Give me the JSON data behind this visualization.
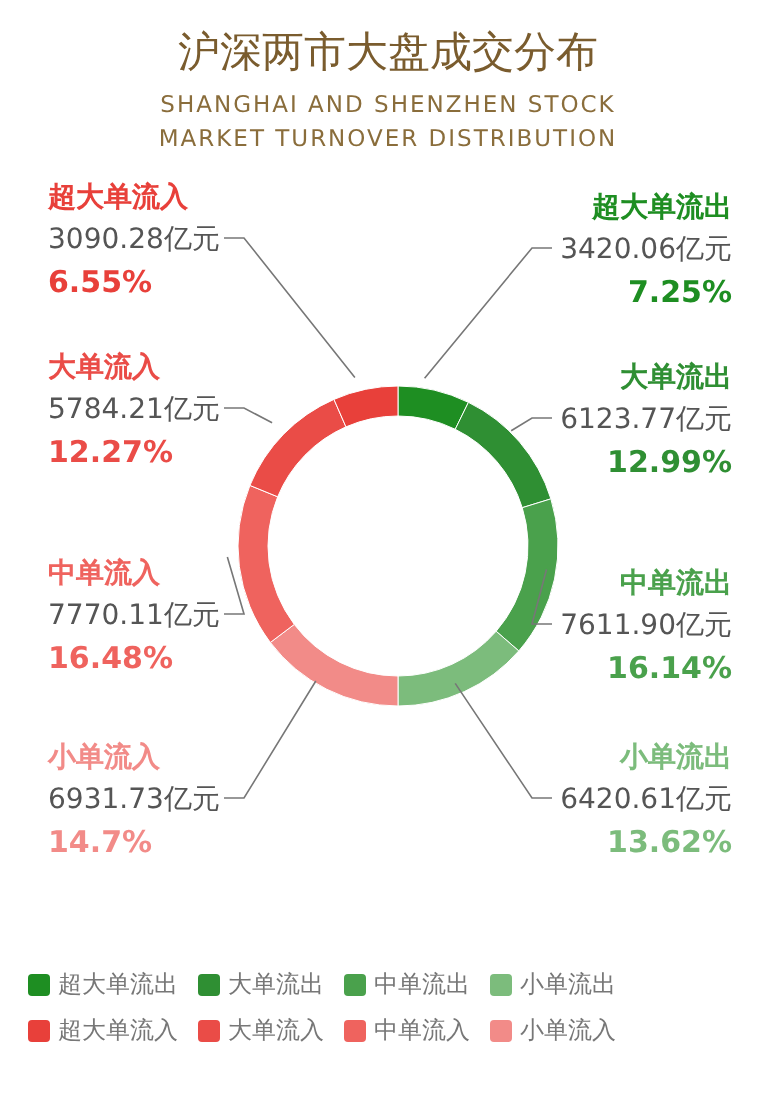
{
  "chart_data": {
    "type": "donut",
    "title": "沪深两市大盘成交分布",
    "subtitle": "SHANGHAI AND SHENZHEN STOCK MARKET TURNOVER DISTRIBUTION",
    "categories": [
      "超大单流出",
      "大单流出",
      "中单流出",
      "小单流出",
      "小单流入",
      "中单流入",
      "大单流入",
      "超大单流入"
    ],
    "values": [
      3420.06,
      6123.77,
      7611.9,
      6420.61,
      6931.73,
      7770.11,
      5784.21,
      3090.28
    ],
    "colors": [
      "#1e8e22",
      "#2f8f33",
      "#4aa14c",
      "#7cbc7c",
      "#f28b88",
      "#ef635e",
      "#ea4c47",
      "#e8403a"
    ],
    "value_labels": [
      "3420.06亿元\n7.25%",
      "6123.77亿元\n12.99%",
      "7611.90亿元\n16.14%",
      "6420.61亿元\n13.62%",
      "6931.73亿元\n14.7%",
      "7770.11亿元\n16.48%",
      "5784.21亿元\n12.27%",
      "3090.28亿元\n6.55%"
    ],
    "legend": "bottom"
  }
}
